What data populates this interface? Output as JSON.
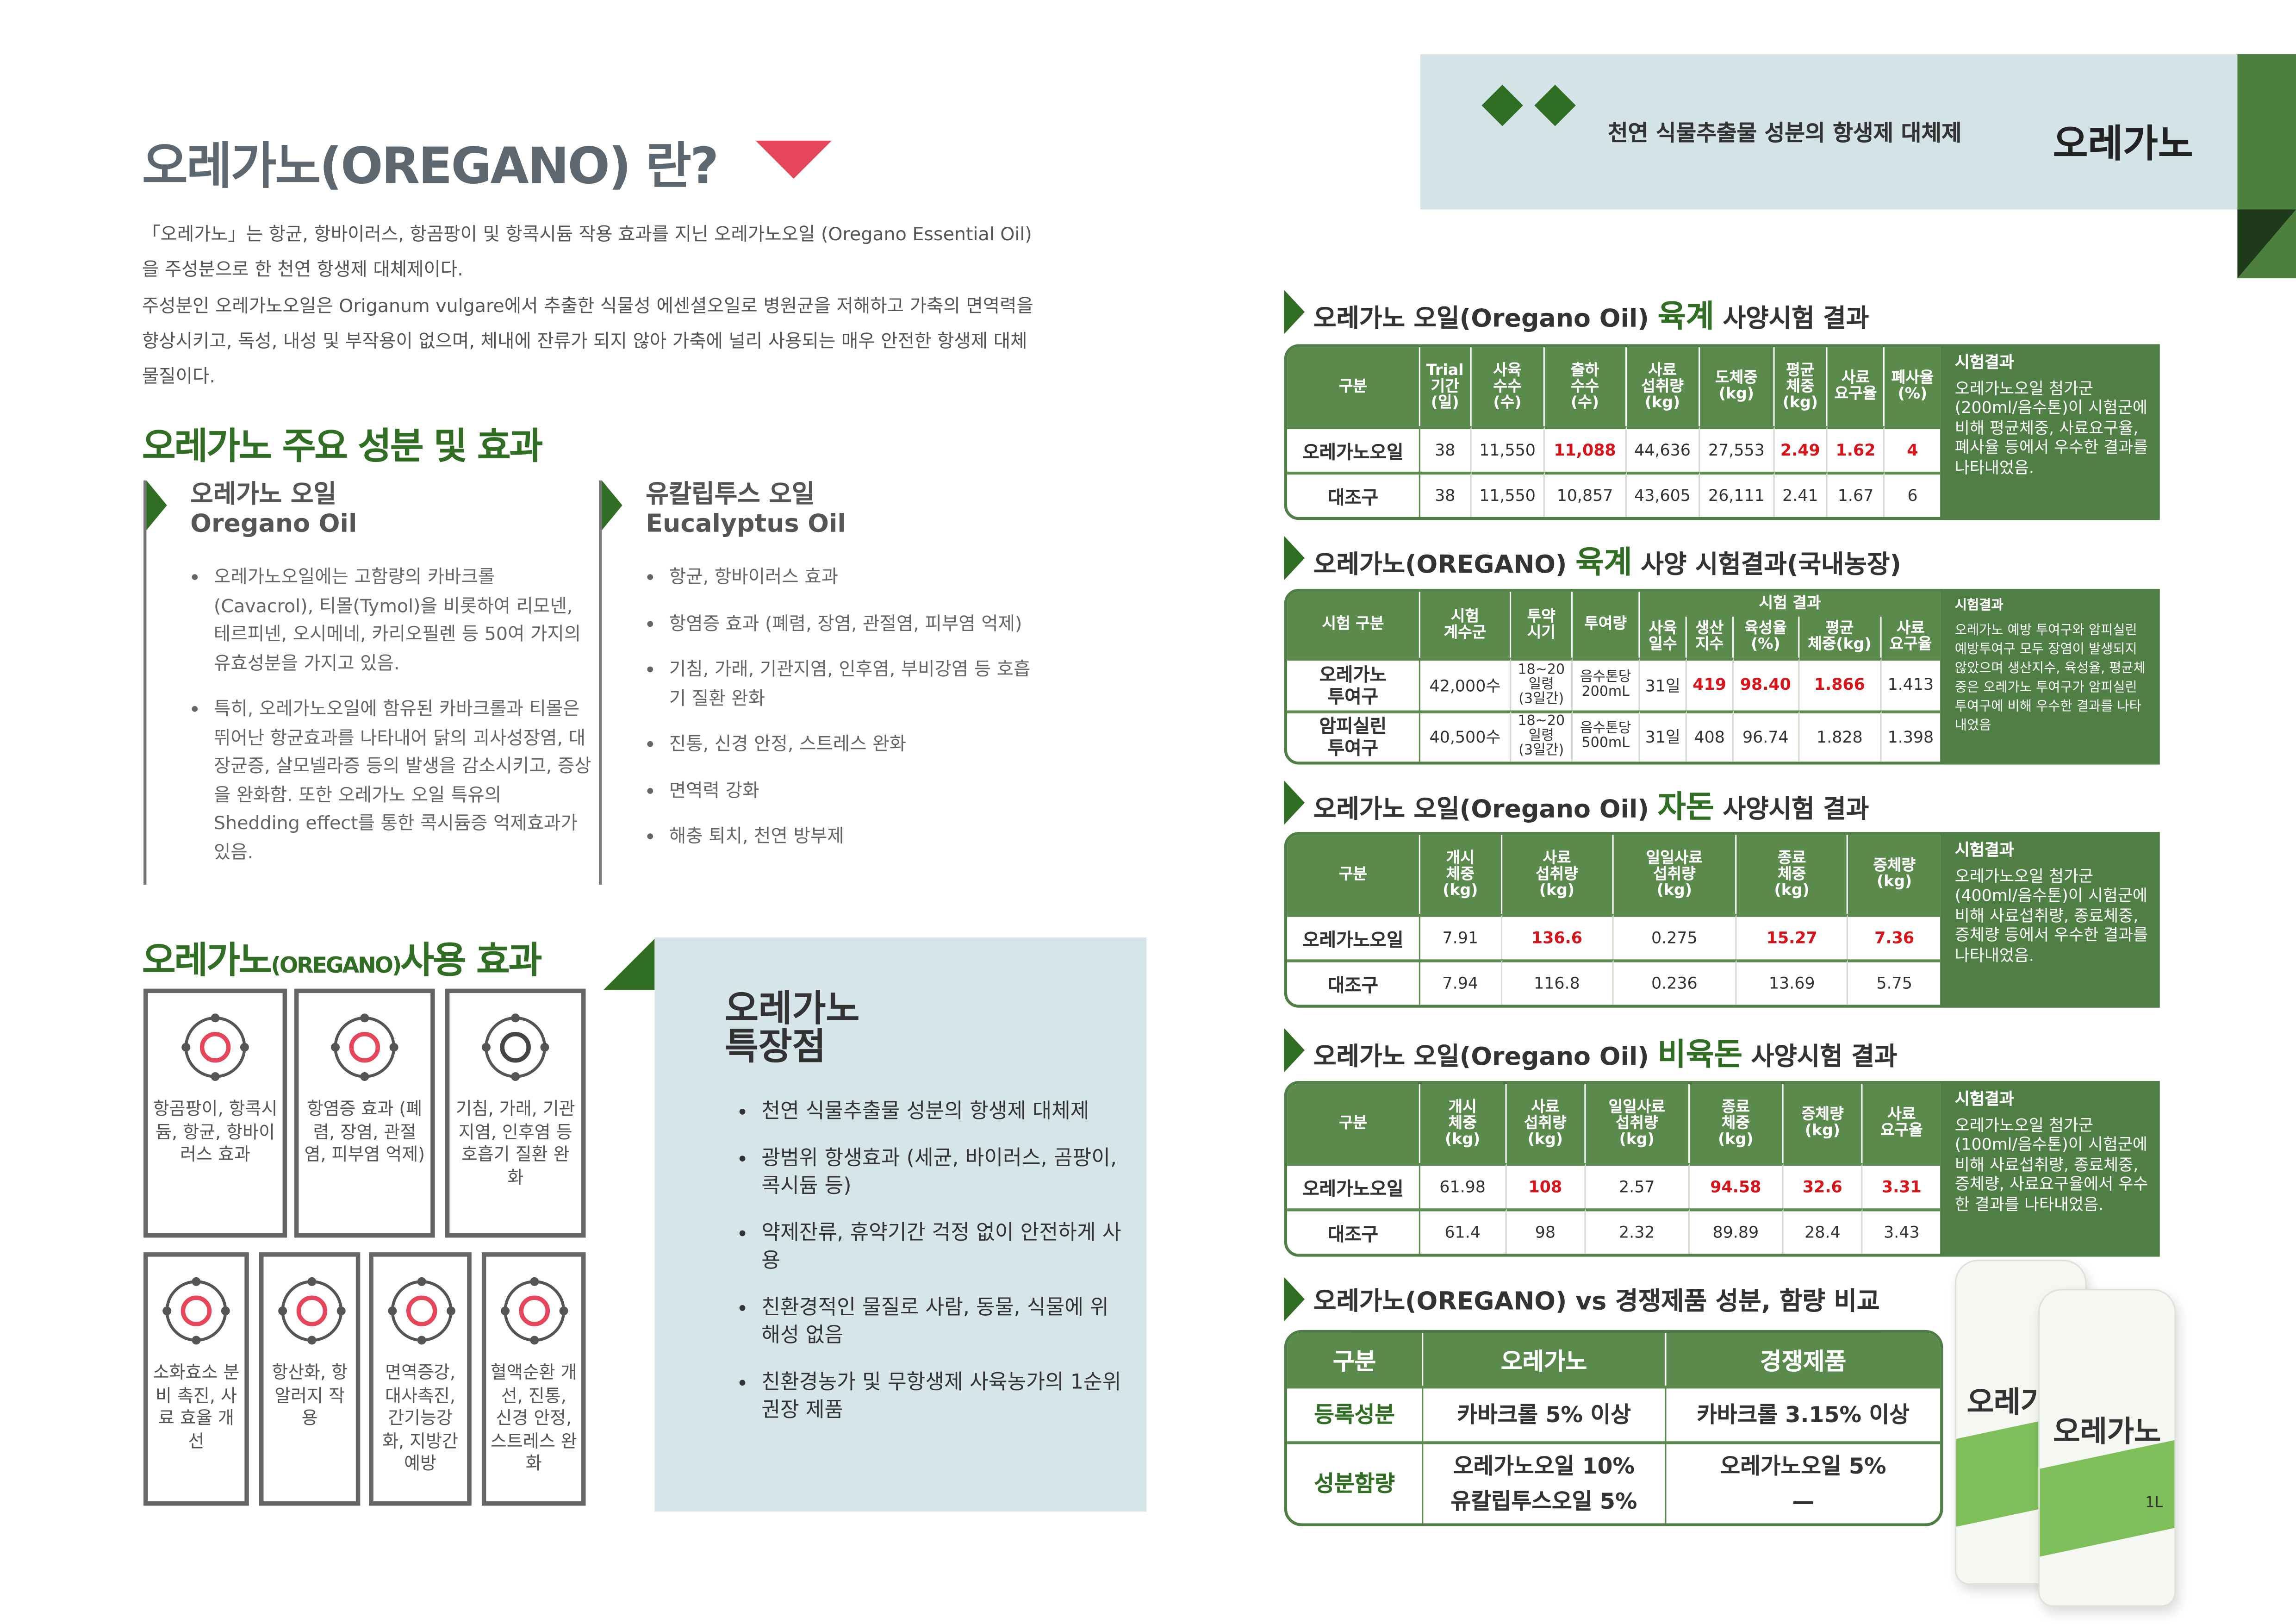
{
  "header": {
    "tagline": "천연 식물추출물 성분의 항생제 대체제",
    "brand": "오레가노"
  },
  "intro": {
    "title": "오레가노(OREGANO) 란?",
    "paragraphs": [
      "「오레가노」는 항균, 항바이러스, 항곰팡이 및 항콕시듐 작용 효과를 지닌 오레가노오일 (Oregano Essential Oil)을 주성분으로 한 천연 항생제 대체제이다.",
      "주성분인 오레가노오일은 Origanum vulgare에서 추출한 식물성 에센셜오일로 병원균을 저해하고 가축의 면역력을 향상시키고, 독성, 내성 및 부작용이 없으며, 체내에 잔류가 되지 않아 가축에 널리 사용되는 매우 안전한 항생제 대체물질이다."
    ]
  },
  "components": {
    "title": "오레가노 주요 성분 및 효과",
    "items": [
      {
        "name": "오레가노 오일",
        "name_en": "Oregano Oil",
        "bullets": [
          "오레가노오일에는 고함량의 카바크롤(Cavacrol), 티몰(Tymol)을 비롯하여 리모넨, 테르피넨, 오시메네, 카리오필렌 등 50여 가지의 유효성분을 가지고 있음.",
          "특히, 오레가노오일에 함유된 카바크롤과 티몰은 뛰어난 항균효과를 나타내어 닭의 괴사성장염, 대장균증, 살모넬라증 등의 발생을 감소시키고, 증상을 완화함. 또한 오레가노 오일 특유의 Shedding effect를 통한 콕시듐증 억제효과가 있음."
        ]
      },
      {
        "name": "유칼립투스 오일",
        "name_en": "Eucalyptus Oil",
        "bullets": [
          "항균, 항바이러스 효과",
          "항염증 효과 (폐렴, 장염, 관절염, 피부염 억제)",
          "기침, 가래, 기관지염, 인후염, 부비강염 등 호흡기 질환 완화",
          "진통, 신경 안정, 스트레스 완화",
          "면역력 강화",
          "해충 퇴치, 천연 방부제"
        ]
      }
    ]
  },
  "effects": {
    "title_parts": [
      "오레가노",
      "(OREGANO)",
      "사용 효과"
    ],
    "cards": [
      "항곰팡이, 항콕시듐, 항균, 항바이러스 효과",
      "항염증 효과 (폐렴, 장염, 관절염, 피부염 억제)",
      "기침, 가래, 기관지염, 인후염 등 호흡기 질환 완화",
      "소화효소 분비 촉진, 사료 효율 개선",
      "항산화, 항알러지 작용",
      "면역증강, 대사촉진, 간기능강화, 지방간예방",
      "혈액순환 개선, 진통, 신경 안정, 스트레스 완화"
    ]
  },
  "features": {
    "title_lines": [
      "오레가노",
      "특장점"
    ],
    "items": [
      "천연 식물추출물 성분의 항생제 대체제",
      "광범위 항생효과 (세균, 바이러스, 곰팡이, 콕시듐 등)",
      "약제잔류, 휴약기간 걱정 없이 안전하게 사용",
      "친환경적인 물질로 사람, 동물, 식물에 위해성 없음",
      "친환경농가 및 무항생제 사육농가의 1순위 권장 제품"
    ]
  },
  "trials": [
    {
      "title_parts": [
        "오레가노 오일(Oregano Oil) ",
        "육계",
        " 사양시험 결과"
      ],
      "columns": [
        [
          "구분"
        ],
        [
          "Trial",
          "기간",
          "(일)"
        ],
        [
          "사육",
          "수수",
          "(수)"
        ],
        [
          "출하",
          "수수",
          "(수)"
        ],
        [
          "사료",
          "섭취량",
          "(kg)"
        ],
        [
          "도체중",
          "(kg)"
        ],
        [
          "평균",
          "체중",
          "(kg)"
        ],
        [
          "사료",
          "요구율"
        ],
        [
          "폐사율",
          "(%)"
        ]
      ],
      "rows": [
        [
          "오레가노오일",
          "38",
          "11,550",
          {
            "text": "11,088",
            "color": "#d7141a"
          },
          "44,636",
          "27,553",
          {
            "text": "2.49",
            "color": "#d7141a"
          },
          {
            "text": "1.62",
            "color": "#d7141a"
          },
          {
            "text": "4",
            "color": "#d7141a"
          }
        ],
        [
          "대조구",
          "38",
          "11,550",
          "10,857",
          "43,605",
          "26,111",
          "2.41",
          "1.67",
          "6"
        ]
      ],
      "result_title": "시험결과",
      "result_text": "오레가노오일 첨가군(200ml/음수톤)이 시험군에 비해 평균체중, 사료요구율, 폐사율 등에서 우수한 결과를 나타내었음."
    },
    {
      "title_parts": [
        "오레가노(OREGANO) ",
        "육계",
        " 사양 시험결과(국내농장)"
      ],
      "columns": [
        [
          "시험 구분"
        ],
        [
          "시험",
          "계수군"
        ],
        [
          "투약",
          "시기"
        ],
        [
          "투여량"
        ]
      ],
      "group": "시험 결과",
      "subcolumns": [
        [
          "사육",
          "일수"
        ],
        [
          "생산",
          "지수"
        ],
        [
          "육성율",
          "(%)"
        ],
        [
          "평균",
          "체중(kg)"
        ],
        [
          "사료",
          "요구율"
        ]
      ],
      "rows": [
        [
          [
            "오레가노",
            "투여구"
          ],
          "42,000수",
          [
            "18~20",
            "일령",
            "(3일간)"
          ],
          [
            "음수톤당",
            "200mL"
          ],
          "31일",
          {
            "text": "419",
            "color": "#d7141a"
          },
          {
            "text": "98.40",
            "color": "#d7141a"
          },
          {
            "text": "1.866",
            "color": "#d7141a"
          },
          "1.413"
        ],
        [
          [
            "암피실린",
            "투여구"
          ],
          "40,500수",
          [
            "18~20",
            "일령",
            "(3일간)"
          ],
          [
            "음수톤당",
            "500mL"
          ],
          "31일",
          "408",
          "96.74",
          "1.828",
          "1.398"
        ]
      ],
      "result_title": "시험결과",
      "result_text": "오레가노 예방 투여구와 암피실린 예방투여구 모두 장염이 발생되지 않았으며 생산지수, 육성율, 평균체중은 오레가노 투여구가 암피실린 투여구에 비해 우수한 결과를 나타내었음"
    },
    {
      "title_parts": [
        "오레가노 오일(Oregano Oil) ",
        "자돈",
        " 사양시험 결과"
      ],
      "columns": [
        [
          "구분"
        ],
        [
          "개시",
          "체중",
          "(kg)"
        ],
        [
          "사료",
          "섭취량",
          "(kg)"
        ],
        [
          "일일사료",
          "섭취량",
          "(kg)"
        ],
        [
          "종료",
          "체중",
          "(kg)"
        ],
        [
          "증체량",
          "(kg)"
        ]
      ],
      "rows": [
        [
          "오레가노오일",
          "7.91",
          {
            "text": "136.6",
            "color": "#d7141a"
          },
          "0.275",
          {
            "text": "15.27",
            "color": "#d7141a"
          },
          {
            "text": "7.36",
            "color": "#d7141a"
          }
        ],
        [
          "대조구",
          "7.94",
          "116.8",
          "0.236",
          "13.69",
          "5.75"
        ]
      ],
      "result_title": "시험결과",
      "result_text": "오레가노오일 첨가군(400ml/음수톤)이 시험군에 비해 사료섭취량, 종료체중, 증체량 등에서 우수한 결과를 나타내었음."
    },
    {
      "title_parts": [
        "오레가노 오일(Oregano Oil) ",
        "비육돈",
        " 사양시험 결과"
      ],
      "columns": [
        [
          "구분"
        ],
        [
          "개시",
          "체중",
          "(kg)"
        ],
        [
          "사료",
          "섭취량",
          "(kg)"
        ],
        [
          "일일사료",
          "섭취량",
          "(kg)"
        ],
        [
          "종료",
          "체중",
          "(kg)"
        ],
        [
          "증체량",
          "(kg)"
        ],
        [
          "사료",
          "요구율"
        ]
      ],
      "rows": [
        [
          "오레가노오일",
          "61.98",
          {
            "text": "108",
            "color": "#d7141a"
          },
          "2.57",
          {
            "text": "94.58",
            "color": "#d7141a"
          },
          {
            "text": "32.6",
            "color": "#d7141a"
          },
          {
            "text": "3.31",
            "color": "#d7141a"
          }
        ],
        [
          "대조구",
          "61.4",
          "98",
          "2.32",
          "89.89",
          "28.4",
          "3.43"
        ]
      ],
      "result_title": "시험결과",
      "result_text": "오레가노오일 첨가군(100ml/음수톤)이 시험군에 비해 사료섭취량, 종료체중, 증체량, 사료요구율에서 우수한 결과를 나타내었음."
    }
  ],
  "comparison": {
    "title": "오레가노(OREGANO) vs 경쟁제품 성분, 함량 비교",
    "columns": [
      "구분",
      "오레가노",
      "경쟁제품"
    ],
    "rows": [
      [
        "등록성분",
        [
          "카바크롤 5% 이상"
        ],
        [
          "카바크롤 3.15% 이상"
        ]
      ],
      [
        "성분함량",
        [
          "오레가노오일 10%",
          "유칼립투스오일 5%"
        ],
        [
          "오레가노오일 5%",
          "—"
        ]
      ]
    ]
  },
  "product": {
    "label": "오레가노",
    "volume": "1L"
  }
}
